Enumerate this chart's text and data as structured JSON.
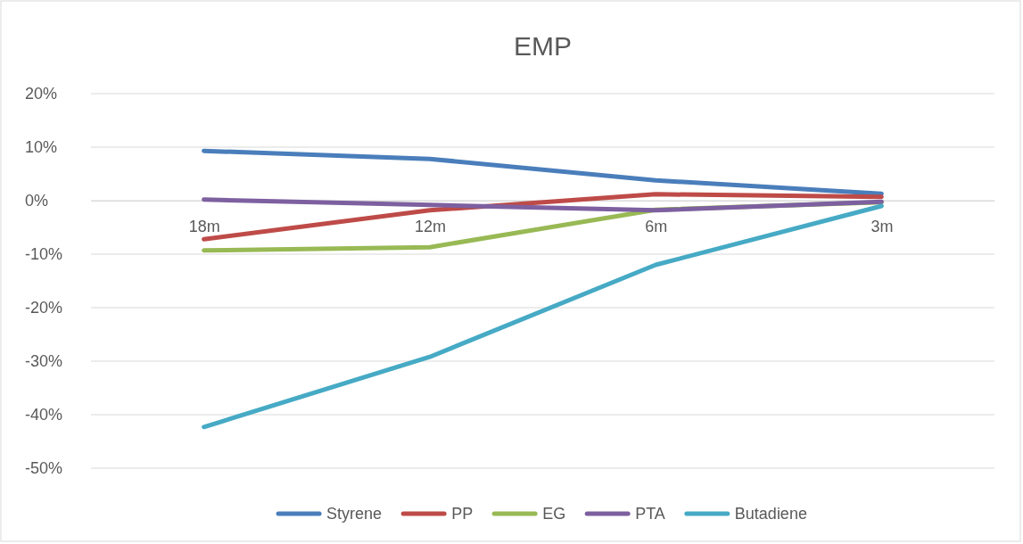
{
  "chart_data": {
    "type": "line",
    "title": "EMP",
    "categories": [
      "18m",
      "12m",
      "6m",
      "3m"
    ],
    "series": [
      {
        "name": "Styrene",
        "color": "#4a7ebb",
        "values": [
          9.3,
          7.8,
          3.8,
          1.3
        ]
      },
      {
        "name": "PP",
        "color": "#be4b48",
        "values": [
          -7.2,
          -1.8,
          1.2,
          0.7
        ]
      },
      {
        "name": "EG",
        "color": "#98b954",
        "values": [
          -9.3,
          -8.7,
          -1.7,
          -0.3
        ]
      },
      {
        "name": "PTA",
        "color": "#7d60a0",
        "values": [
          0.2,
          -0.8,
          -1.8,
          -0.2
        ]
      },
      {
        "name": "Butadiene",
        "color": "#46aac5",
        "values": [
          -42.3,
          -29.2,
          -12,
          -1
        ]
      }
    ],
    "ylim": [
      -50,
      20
    ],
    "yticks": [
      {
        "value": -50,
        "label": "-50%"
      },
      {
        "value": -40,
        "label": "-40%"
      },
      {
        "value": -30,
        "label": "-30%"
      },
      {
        "value": -20,
        "label": "-20%"
      },
      {
        "value": -10,
        "label": "-10%"
      },
      {
        "value": 0,
        "label": "0%"
      },
      {
        "value": 10,
        "label": "10%"
      },
      {
        "value": 20,
        "label": "20%"
      }
    ],
    "grid": "y",
    "legend": "bottom",
    "marker": "none",
    "line_style": "solid"
  }
}
